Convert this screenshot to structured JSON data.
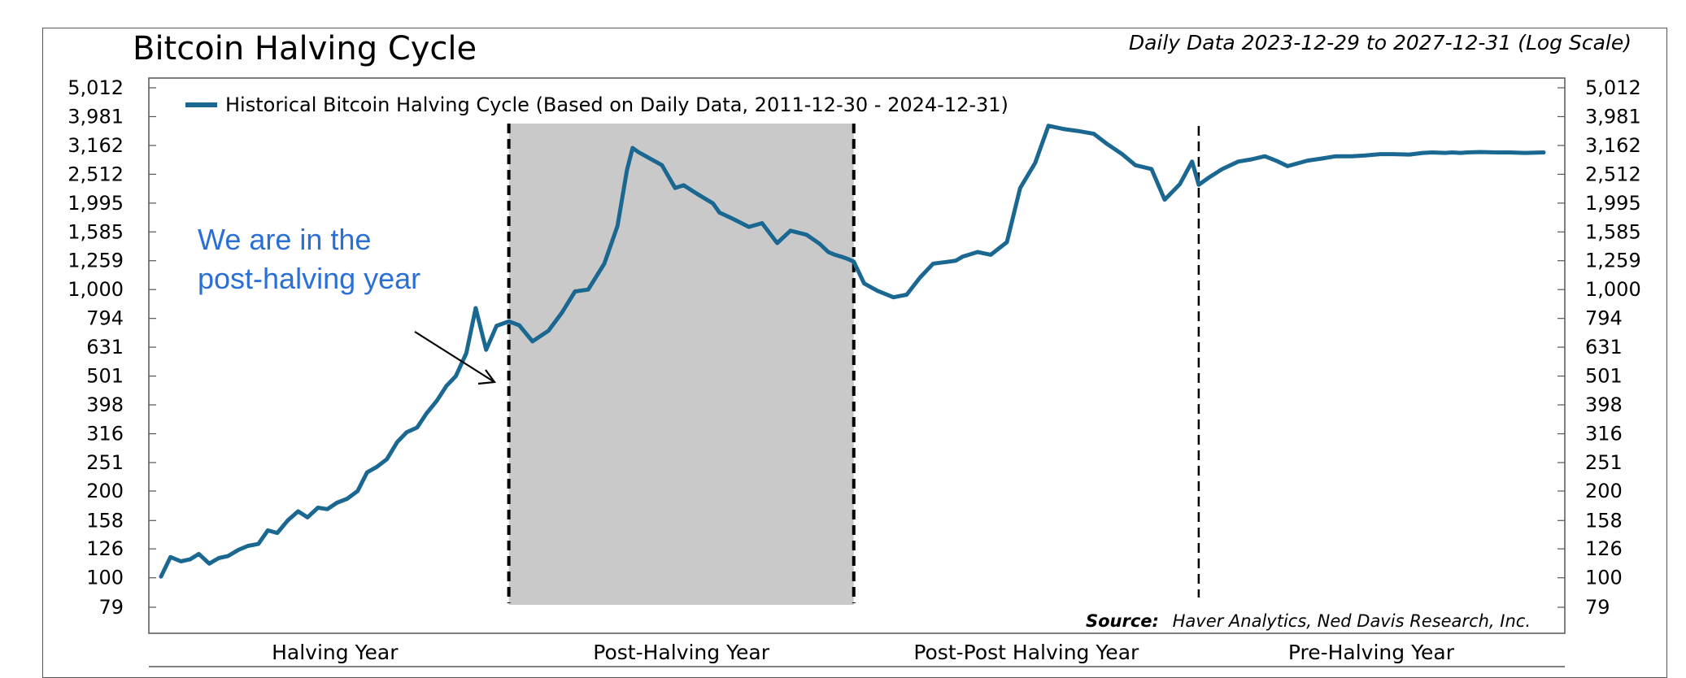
{
  "title": "Bitcoin Halving Cycle",
  "subtitle": "Daily Data 2023-12-29 to 2027-12-31 (Log Scale)",
  "annotation": {
    "line1": "We are in the",
    "line2": "post-halving year"
  },
  "source": {
    "label": "Source:",
    "text": "Haver Analytics, Ned Davis Research, Inc."
  },
  "colors": {
    "series": "#1a6891",
    "shade": "#c9c9c9",
    "annotation": "#2a6fd6"
  },
  "chart_data": {
    "type": "line",
    "title": "Bitcoin Halving Cycle",
    "yscale": "log",
    "ylim": [
      79,
      5012
    ],
    "yticks": [
      79,
      100,
      126,
      158,
      200,
      251,
      316,
      398,
      501,
      631,
      794,
      1000,
      1259,
      1585,
      1995,
      2512,
      3162,
      3981,
      5012
    ],
    "ytick_labels": [
      "79",
      "100",
      "126",
      "158",
      "200",
      "251",
      "316",
      "398",
      "501",
      "631",
      "794",
      "1,000",
      "1,259",
      "1,585",
      "1,995",
      "2,512",
      "3,162",
      "3,981",
      "5,012"
    ],
    "xlim": [
      "2023-12-29",
      "2027-12-31"
    ],
    "categories": [
      "Halving Year",
      "Post-Halving Year",
      "Post-Post Halving Year",
      "Pre-Halving Year"
    ],
    "shaded_region": [
      "2024-12-31",
      "2025-12-31"
    ],
    "vlines": [
      "2024-12-31",
      "2025-12-31",
      "2026-12-31"
    ],
    "legend_position": "top-left",
    "series": [
      {
        "name": "Historical Bitcoin Halving Cycle (Based on Daily Data, 2011-12-30 - 2024-12-31)",
        "x": [
          "2023-12-29",
          "2024-01-08",
          "2024-01-19",
          "2024-01-29",
          "2024-02-07",
          "2024-02-18",
          "2024-02-28",
          "2024-03-09",
          "2024-03-20",
          "2024-03-30",
          "2024-04-10",
          "2024-04-20",
          "2024-04-30",
          "2024-05-11",
          "2024-05-22",
          "2024-06-01",
          "2024-06-12",
          "2024-06-22",
          "2024-07-02",
          "2024-07-13",
          "2024-07-24",
          "2024-08-03",
          "2024-08-13",
          "2024-08-24",
          "2024-09-04",
          "2024-09-14",
          "2024-09-25",
          "2024-10-05",
          "2024-10-16",
          "2024-10-26",
          "2024-11-05",
          "2024-11-16",
          "2024-11-26",
          "2024-12-07",
          "2024-12-18",
          "2024-12-31",
          "2025-01-11",
          "2025-01-25",
          "2025-02-11",
          "2025-02-25",
          "2025-03-11",
          "2025-03-25",
          "2025-04-11",
          "2025-04-25",
          "2025-05-05",
          "2025-05-11",
          "2025-05-17",
          "2025-05-25",
          "2025-06-11",
          "2025-06-25",
          "2025-07-04",
          "2025-07-18",
          "2025-08-04",
          "2025-08-11",
          "2025-08-25",
          "2025-09-11",
          "2025-09-25",
          "2025-10-11",
          "2025-10-25",
          "2025-11-11",
          "2025-11-25",
          "2025-12-04",
          "2025-12-11",
          "2025-12-18",
          "2025-12-24",
          "2025-12-31",
          "2026-01-11",
          "2026-01-25",
          "2026-02-11",
          "2026-02-25",
          "2026-03-11",
          "2026-03-25",
          "2026-04-11",
          "2026-04-18",
          "2026-04-25",
          "2026-05-11",
          "2026-05-25",
          "2026-06-11",
          "2026-06-25",
          "2026-07-11",
          "2026-07-25",
          "2026-08-11",
          "2026-08-25",
          "2026-09-11",
          "2026-09-25",
          "2026-10-11",
          "2026-10-25",
          "2026-11-11",
          "2026-11-25",
          "2026-12-11",
          "2026-12-24",
          "2026-12-31",
          "2027-01-11",
          "2027-01-25",
          "2027-02-11",
          "2027-02-25",
          "2027-03-11",
          "2027-03-25",
          "2027-04-04",
          "2027-04-11",
          "2027-04-25",
          "2027-05-11",
          "2027-05-25",
          "2027-06-11",
          "2027-06-25",
          "2027-07-11",
          "2027-07-25",
          "2027-08-11",
          "2027-08-25",
          "2027-09-04",
          "2027-09-18",
          "2027-09-25",
          "2027-10-04",
          "2027-10-11",
          "2027-10-25",
          "2027-11-11",
          "2027-11-25",
          "2027-12-11",
          "2027-12-31"
        ],
        "y": [
          101,
          118,
          114,
          116,
          121,
          112,
          117,
          119,
          125,
          129,
          131,
          146,
          143,
          158,
          170,
          162,
          175,
          173,
          182,
          188,
          200,
          232,
          242,
          258,
          296,
          320,
          332,
          372,
          412,
          463,
          501,
          601,
          862,
          618,
          748,
          775,
          752,
          661,
          720,
          830,
          985,
          1000,
          1230,
          1660,
          2600,
          3100,
          3000,
          2900,
          2700,
          2250,
          2300,
          2150,
          1990,
          1850,
          1760,
          1650,
          1700,
          1450,
          1600,
          1550,
          1440,
          1350,
          1320,
          1300,
          1280,
          1250,
          1050,
          990,
          940,
          960,
          1100,
          1230,
          1250,
          1260,
          1300,
          1350,
          1320,
          1460,
          2250,
          2750,
          3700,
          3600,
          3550,
          3470,
          3200,
          2950,
          2700,
          2620,
          2050,
          2320,
          2780,
          2310,
          2450,
          2620,
          2780,
          2830,
          2900,
          2780,
          2680,
          2720,
          2800,
          2850,
          2900,
          2900,
          2920,
          2950,
          2950,
          2940,
          2980,
          2990,
          2980,
          2990,
          2980,
          2990,
          3000,
          2990,
          2990,
          2980,
          2990
        ]
      }
    ]
  }
}
